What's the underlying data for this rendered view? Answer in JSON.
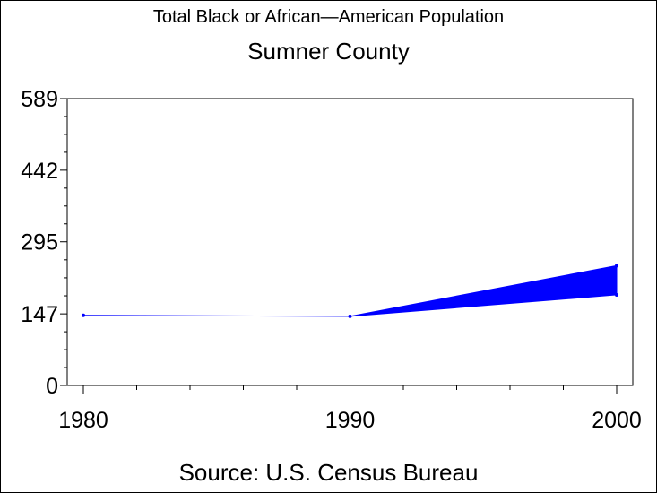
{
  "chart_data": {
    "type": "line",
    "title": "Total Black or African—American Population",
    "subtitle": "Sumner County",
    "source": "Source: U.S. Census Bureau",
    "xlabel": "",
    "ylabel": "",
    "x_ticks": [
      "1980",
      "1990",
      "2000"
    ],
    "y_ticks": [
      "0",
      "147",
      "295",
      "442",
      "589"
    ],
    "xlim": [
      1980,
      2000
    ],
    "ylim": [
      0,
      589
    ],
    "grid": false,
    "line_color": "#0000ff",
    "series": [
      {
        "x": [
          1980,
          1990
        ],
        "values": [
          144,
          142
        ]
      }
    ],
    "projection": {
      "x": [
        1990,
        2000
      ],
      "upper": [
        142,
        246
      ],
      "lower": [
        142,
        186
      ]
    }
  }
}
